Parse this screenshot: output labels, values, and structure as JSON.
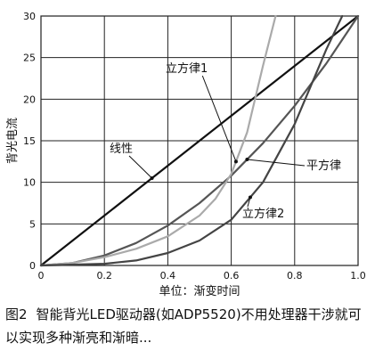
{
  "chart_data": {
    "type": "line",
    "title": "",
    "xlabel": "单位：渐变时间",
    "ylabel": "背光电流",
    "xlim": [
      0,
      1.0
    ],
    "ylim": [
      0,
      30
    ],
    "x_ticks": [
      "0",
      "0.2",
      "0.4",
      "0.6",
      "0.8",
      "1.0"
    ],
    "y_ticks": [
      "0",
      "5",
      "10",
      "15",
      "20",
      "25",
      "30"
    ],
    "grid": true,
    "series": [
      {
        "name": "线性",
        "color": "#111111",
        "x": [
          0,
          0.1,
          0.2,
          0.3,
          0.4,
          0.5,
          0.6,
          0.7,
          0.8,
          0.9,
          1.0
        ],
        "y": [
          0,
          3,
          6,
          9,
          12,
          15,
          18,
          21,
          24,
          27,
          30
        ]
      },
      {
        "name": "平方律",
        "color": "#555555",
        "x": [
          0,
          0.1,
          0.2,
          0.3,
          0.4,
          0.5,
          0.6,
          0.7,
          0.8,
          0.9,
          1.0
        ],
        "y": [
          0,
          0.3,
          1.2,
          2.7,
          4.8,
          7.5,
          10.8,
          14.7,
          19.2,
          24.3,
          30
        ]
      },
      {
        "name": "立方律1",
        "color": "#aaaaaa",
        "x": [
          0,
          0.1,
          0.2,
          0.3,
          0.4,
          0.5,
          0.55,
          0.6,
          0.65,
          0.7,
          0.74
        ],
        "y": [
          0,
          0.3,
          1.0,
          2.0,
          3.5,
          6.0,
          8.0,
          11.0,
          16.0,
          24.0,
          30
        ]
      },
      {
        "name": "立方律2",
        "color": "#444444",
        "x": [
          0,
          0.2,
          0.3,
          0.4,
          0.5,
          0.6,
          0.7,
          0.8,
          0.85,
          0.9,
          0.95
        ],
        "y": [
          0,
          0.2,
          0.6,
          1.5,
          3.0,
          5.5,
          10.0,
          17.0,
          21.5,
          26.0,
          30
        ]
      }
    ],
    "annotations": [
      {
        "text": "立方律1",
        "series": "立方律1"
      },
      {
        "text": "线性",
        "series": "线性"
      },
      {
        "text": "平方律",
        "series": "平方律"
      },
      {
        "text": "立方律2",
        "series": "立方律2"
      }
    ]
  },
  "caption": {
    "label": "图2",
    "text": "智能背光LED驱动器(如ADP5520)不用处理器干涉就可以实现多种渐亮和渐暗..."
  }
}
